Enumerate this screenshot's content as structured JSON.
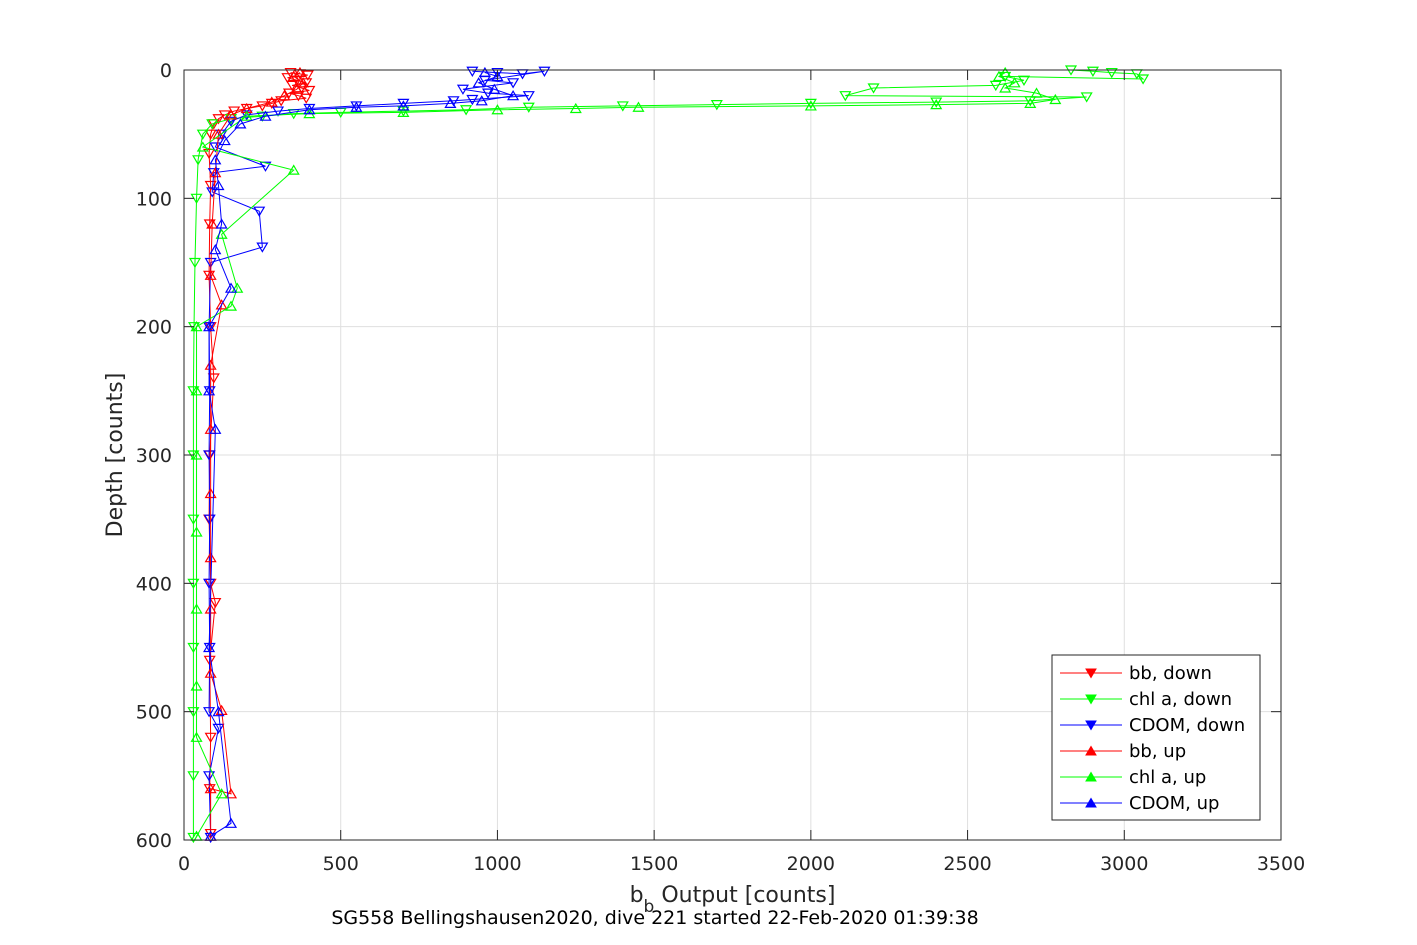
{
  "chart_data": {
    "type": "scatter",
    "title": "",
    "xlabel_main": "b",
    "xlabel_sub": "b",
    "xlabel_rest": " Output [counts]",
    "ylabel": "Depth [counts]",
    "caption": "SG558 Bellingshausen2020, dive 221 started 22-Feb-2020 01:39:38",
    "xlim": [
      0,
      3500
    ],
    "ylim": [
      0,
      600
    ],
    "y_reversed": true,
    "grid": true,
    "legend_position": "bottom-right",
    "x_ticks": [
      "0",
      "500",
      "1000",
      "1500",
      "2000",
      "2500",
      "3000",
      "3500"
    ],
    "y_ticks": [
      "0",
      "100",
      "200",
      "300",
      "400",
      "500",
      "600"
    ],
    "series": [
      {
        "name": "bb, down",
        "color": "#ff0000",
        "marker": "triangle-down",
        "points": [
          [
            340,
            2
          ],
          [
            370,
            3
          ],
          [
            395,
            4
          ],
          [
            330,
            6
          ],
          [
            360,
            8
          ],
          [
            390,
            10
          ],
          [
            345,
            12
          ],
          [
            375,
            14
          ],
          [
            400,
            16
          ],
          [
            335,
            18
          ],
          [
            365,
            20
          ],
          [
            390,
            22
          ],
          [
            310,
            24
          ],
          [
            280,
            26
          ],
          [
            250,
            28
          ],
          [
            200,
            30
          ],
          [
            160,
            32
          ],
          [
            130,
            35
          ],
          [
            110,
            38
          ],
          [
            95,
            42
          ],
          [
            85,
            50
          ],
          [
            80,
            65
          ],
          [
            85,
            90
          ],
          [
            82,
            120
          ],
          [
            80,
            160
          ],
          [
            85,
            200
          ],
          [
            95,
            240
          ],
          [
            82,
            300
          ],
          [
            80,
            350
          ],
          [
            85,
            400
          ],
          [
            100,
            415
          ],
          [
            82,
            460
          ],
          [
            85,
            520
          ],
          [
            82,
            560
          ],
          [
            85,
            595
          ]
        ]
      },
      {
        "name": "chl a, down",
        "color": "#00ff00",
        "marker": "triangle-down",
        "points": [
          [
            2830,
            0
          ],
          [
            2900,
            1
          ],
          [
            2960,
            2
          ],
          [
            3040,
            3
          ],
          [
            3060,
            7
          ],
          [
            2620,
            5
          ],
          [
            2680,
            8
          ],
          [
            2590,
            12
          ],
          [
            2200,
            14
          ],
          [
            2110,
            20
          ],
          [
            2880,
            21
          ],
          [
            2700,
            24
          ],
          [
            2400,
            25
          ],
          [
            2000,
            26
          ],
          [
            1700,
            27
          ],
          [
            1400,
            28
          ],
          [
            1100,
            29
          ],
          [
            900,
            31
          ],
          [
            700,
            32
          ],
          [
            500,
            33
          ],
          [
            350,
            34
          ],
          [
            250,
            36
          ],
          [
            150,
            38
          ],
          [
            90,
            42
          ],
          [
            60,
            50
          ],
          [
            45,
            70
          ],
          [
            40,
            100
          ],
          [
            35,
            150
          ],
          [
            32,
            200
          ],
          [
            30,
            250
          ],
          [
            30,
            300
          ],
          [
            30,
            350
          ],
          [
            30,
            400
          ],
          [
            30,
            450
          ],
          [
            30,
            500
          ],
          [
            30,
            550
          ],
          [
            30,
            598
          ]
        ]
      },
      {
        "name": "CDOM, down",
        "color": "#0000ff",
        "marker": "triangle-down",
        "points": [
          [
            920,
            1
          ],
          [
            1000,
            2
          ],
          [
            1080,
            3
          ],
          [
            1150,
            1
          ],
          [
            960,
            8
          ],
          [
            1050,
            10
          ],
          [
            890,
            15
          ],
          [
            970,
            18
          ],
          [
            1100,
            20
          ],
          [
            920,
            23
          ],
          [
            860,
            24
          ],
          [
            700,
            26
          ],
          [
            550,
            28
          ],
          [
            400,
            30
          ],
          [
            300,
            32
          ],
          [
            200,
            35
          ],
          [
            150,
            40
          ],
          [
            120,
            50
          ],
          [
            100,
            60
          ],
          [
            260,
            75
          ],
          [
            95,
            80
          ],
          [
            90,
            95
          ],
          [
            240,
            110
          ],
          [
            250,
            138
          ],
          [
            85,
            150
          ],
          [
            80,
            200
          ],
          [
            82,
            250
          ],
          [
            80,
            300
          ],
          [
            82,
            350
          ],
          [
            80,
            400
          ],
          [
            82,
            450
          ],
          [
            80,
            500
          ],
          [
            110,
            513
          ],
          [
            80,
            550
          ],
          [
            85,
            598
          ]
        ]
      },
      {
        "name": "bb, up",
        "color": "#ff0000",
        "marker": "triangle-up",
        "points": [
          [
            85,
            597
          ],
          [
            85,
            560
          ],
          [
            150,
            564
          ],
          [
            120,
            499
          ],
          [
            85,
            470
          ],
          [
            85,
            420
          ],
          [
            85,
            380
          ],
          [
            85,
            330
          ],
          [
            85,
            280
          ],
          [
            85,
            230
          ],
          [
            120,
            183
          ],
          [
            85,
            160
          ],
          [
            90,
            120
          ],
          [
            100,
            80
          ],
          [
            110,
            50
          ],
          [
            150,
            35
          ],
          [
            200,
            30
          ],
          [
            280,
            25
          ],
          [
            320,
            20
          ],
          [
            360,
            15
          ],
          [
            380,
            10
          ],
          [
            350,
            5
          ],
          [
            370,
            2
          ]
        ]
      },
      {
        "name": "chl a, up",
        "color": "#00ff00",
        "marker": "triangle-up",
        "points": [
          [
            40,
            597
          ],
          [
            120,
            564
          ],
          [
            40,
            520
          ],
          [
            40,
            480
          ],
          [
            40,
            420
          ],
          [
            40,
            360
          ],
          [
            40,
            300
          ],
          [
            40,
            250
          ],
          [
            40,
            200
          ],
          [
            150,
            184
          ],
          [
            170,
            170
          ],
          [
            120,
            128
          ],
          [
            350,
            78
          ],
          [
            60,
            60
          ],
          [
            200,
            36
          ],
          [
            400,
            34
          ],
          [
            700,
            33
          ],
          [
            1000,
            31
          ],
          [
            1250,
            30
          ],
          [
            1450,
            29
          ],
          [
            2000,
            28
          ],
          [
            2400,
            27
          ],
          [
            2700,
            26
          ],
          [
            2780,
            23
          ],
          [
            2720,
            18
          ],
          [
            2620,
            14
          ],
          [
            2650,
            10
          ],
          [
            2600,
            5
          ],
          [
            2620,
            2
          ]
        ]
      },
      {
        "name": "CDOM, up",
        "color": "#0000ff",
        "marker": "triangle-up",
        "points": [
          [
            85,
            597
          ],
          [
            150,
            587
          ],
          [
            110,
            500
          ],
          [
            80,
            450
          ],
          [
            100,
            280
          ],
          [
            80,
            250
          ],
          [
            80,
            200
          ],
          [
            150,
            170
          ],
          [
            100,
            140
          ],
          [
            120,
            120
          ],
          [
            110,
            90
          ],
          [
            100,
            70
          ],
          [
            130,
            55
          ],
          [
            180,
            42
          ],
          [
            260,
            36
          ],
          [
            400,
            31
          ],
          [
            550,
            29
          ],
          [
            700,
            28
          ],
          [
            850,
            26
          ],
          [
            950,
            24
          ],
          [
            1050,
            20
          ],
          [
            990,
            15
          ],
          [
            940,
            10
          ],
          [
            1000,
            5
          ],
          [
            960,
            2
          ]
        ]
      }
    ]
  }
}
